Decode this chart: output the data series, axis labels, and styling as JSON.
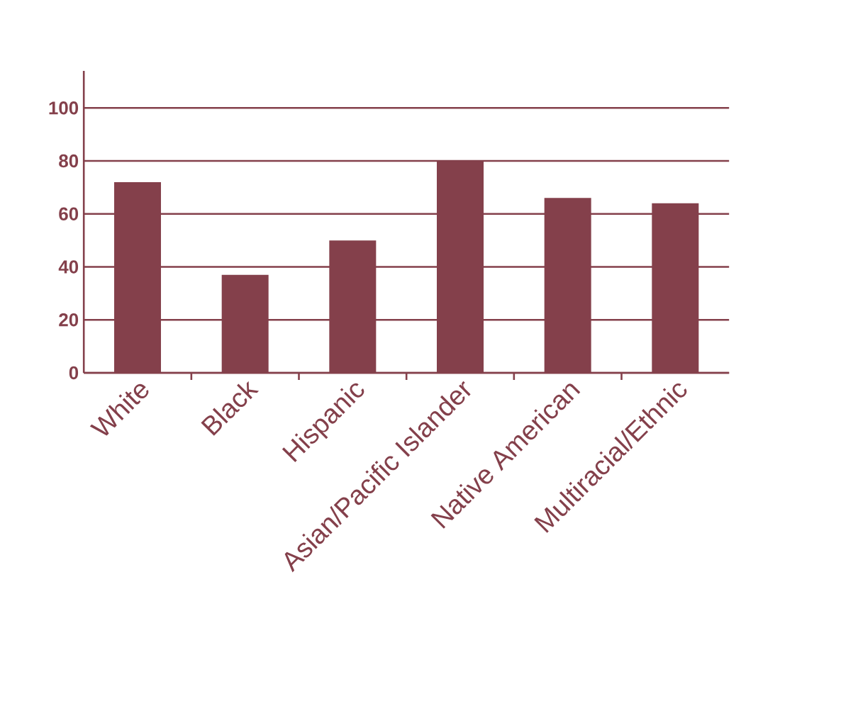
{
  "chart_data": {
    "type": "bar",
    "categories": [
      "White",
      "Black",
      "Hispanic",
      "Asian/Pacific Islander",
      "Native American",
      "Multiracial/Ethnic"
    ],
    "values": [
      72,
      37,
      50,
      80,
      66,
      64
    ],
    "color": "#84404b",
    "ylim": [
      0,
      114
    ],
    "yticks": [
      0,
      20,
      40,
      60,
      80,
      100
    ],
    "grid": "y"
  }
}
